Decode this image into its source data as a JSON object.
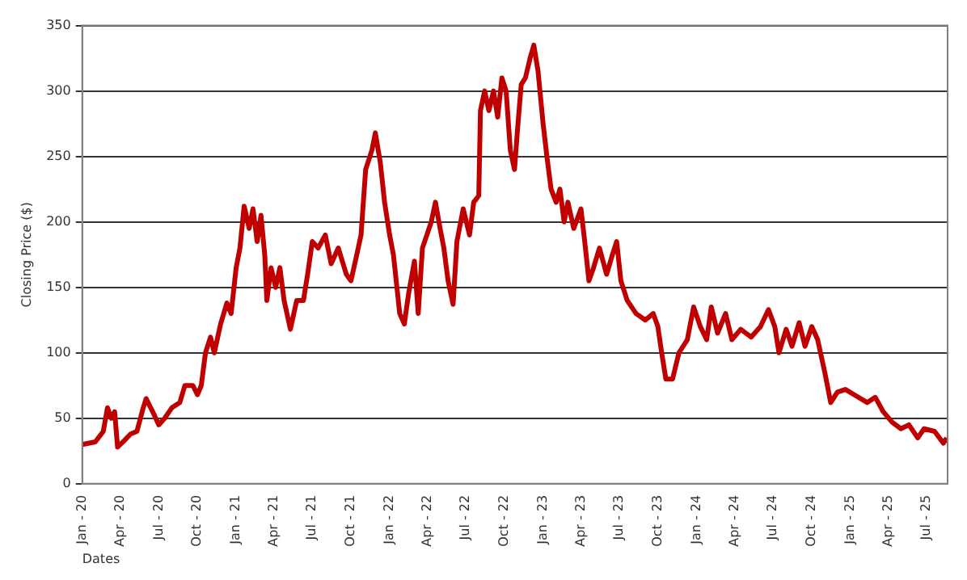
{
  "chart_data": {
    "type": "line",
    "xlabel": "Dates",
    "ylabel": "Closing Price ($)",
    "ylim": [
      0,
      350
    ],
    "yticks": [
      0,
      50,
      100,
      150,
      200,
      250,
      300,
      350
    ],
    "xlim": [
      "2020-01-01",
      "2025-08-20"
    ],
    "xticks": [
      {
        "value": "2020-01-01",
        "label": "Jan - 20"
      },
      {
        "value": "2020-04-01",
        "label": "Apr - 20"
      },
      {
        "value": "2020-07-01",
        "label": "Jul - 20"
      },
      {
        "value": "2020-10-01",
        "label": "Oct - 20"
      },
      {
        "value": "2021-01-01",
        "label": "Jan - 21"
      },
      {
        "value": "2021-04-01",
        "label": "Apr - 21"
      },
      {
        "value": "2021-07-01",
        "label": "Jul - 21"
      },
      {
        "value": "2021-10-01",
        "label": "Oct - 21"
      },
      {
        "value": "2022-01-01",
        "label": "Jan - 22"
      },
      {
        "value": "2022-04-01",
        "label": "Apr - 22"
      },
      {
        "value": "2022-07-01",
        "label": "Jul - 22"
      },
      {
        "value": "2022-10-01",
        "label": "Oct - 22"
      },
      {
        "value": "2023-01-01",
        "label": "Jan - 23"
      },
      {
        "value": "2023-04-01",
        "label": "Apr - 23"
      },
      {
        "value": "2023-07-01",
        "label": "Jul - 23"
      },
      {
        "value": "2023-10-01",
        "label": "Oct - 23"
      },
      {
        "value": "2024-01-01",
        "label": "Jan - 24"
      },
      {
        "value": "2024-04-01",
        "label": "Apr - 24"
      },
      {
        "value": "2024-07-01",
        "label": "Jul - 24"
      },
      {
        "value": "2024-10-01",
        "label": "Oct - 24"
      },
      {
        "value": "2025-01-01",
        "label": "Jan - 25"
      },
      {
        "value": "2025-04-01",
        "label": "Apr - 25"
      },
      {
        "value": "2025-07-01",
        "label": "Jul - 25"
      }
    ],
    "x": [
      "2020-01-01",
      "2020-02-01",
      "2020-02-20",
      "2020-03-01",
      "2020-03-10",
      "2020-03-18",
      "2020-03-25",
      "2020-04-10",
      "2020-04-25",
      "2020-05-10",
      "2020-05-25",
      "2020-06-01",
      "2020-06-15",
      "2020-07-01",
      "2020-07-15",
      "2020-08-01",
      "2020-08-20",
      "2020-09-01",
      "2020-09-20",
      "2020-10-01",
      "2020-10-10",
      "2020-10-20",
      "2020-11-01",
      "2020-11-10",
      "2020-11-25",
      "2020-12-10",
      "2020-12-20",
      "2021-01-01",
      "2021-01-10",
      "2021-01-20",
      "2021-02-01",
      "2021-02-10",
      "2021-02-20",
      "2021-03-01",
      "2021-03-10",
      "2021-03-15",
      "2021-03-25",
      "2021-04-05",
      "2021-04-15",
      "2021-04-25",
      "2021-05-10",
      "2021-05-25",
      "2021-06-10",
      "2021-06-20",
      "2021-07-01",
      "2021-07-15",
      "2021-08-01",
      "2021-08-15",
      "2021-09-01",
      "2021-09-20",
      "2021-10-01",
      "2021-10-15",
      "2021-10-25",
      "2021-11-05",
      "2021-11-20",
      "2021-11-28",
      "2021-12-10",
      "2021-12-20",
      "2022-01-01",
      "2022-01-10",
      "2022-01-25",
      "2022-02-05",
      "2022-02-15",
      "2022-03-01",
      "2022-03-10",
      "2022-03-20",
      "2022-04-10",
      "2022-04-20",
      "2022-05-01",
      "2022-05-10",
      "2022-05-20",
      "2022-06-01",
      "2022-06-10",
      "2022-06-25",
      "2022-07-10",
      "2022-07-20",
      "2022-08-01",
      "2022-08-05",
      "2022-08-15",
      "2022-08-25",
      "2022-09-05",
      "2022-09-15",
      "2022-09-25",
      "2022-10-05",
      "2022-10-15",
      "2022-10-25",
      "2022-11-01",
      "2022-11-10",
      "2022-11-20",
      "2022-12-01",
      "2022-12-10",
      "2022-12-20",
      "2023-01-01",
      "2023-01-10",
      "2023-01-20",
      "2023-02-01",
      "2023-02-10",
      "2023-02-20",
      "2023-03-01",
      "2023-03-15",
      "2023-04-01",
      "2023-04-10",
      "2023-04-20",
      "2023-05-01",
      "2023-05-15",
      "2023-06-01",
      "2023-06-15",
      "2023-06-25",
      "2023-07-05",
      "2023-07-20",
      "2023-08-10",
      "2023-09-01",
      "2023-09-20",
      "2023-10-01",
      "2023-10-10",
      "2023-10-20",
      "2023-11-05",
      "2023-11-20",
      "2023-12-10",
      "2023-12-25",
      "2024-01-10",
      "2024-01-25",
      "2024-02-05",
      "2024-02-20",
      "2024-03-10",
      "2024-03-25",
      "2024-04-15",
      "2024-05-10",
      "2024-06-01",
      "2024-06-20",
      "2024-07-05",
      "2024-07-15",
      "2024-08-01",
      "2024-08-15",
      "2024-09-01",
      "2024-09-15",
      "2024-10-01",
      "2024-10-15",
      "2024-11-01",
      "2024-11-15",
      "2024-12-01",
      "2024-12-20",
      "2025-01-15",
      "2025-02-10",
      "2025-03-01",
      "2025-03-20",
      "2025-04-10",
      "2025-05-01",
      "2025-05-20",
      "2025-06-10",
      "2025-06-25",
      "2025-07-20",
      "2025-08-10",
      "2025-08-18"
    ],
    "series": [
      {
        "color": "#c00000",
        "values": [
          30,
          32,
          40,
          58,
          50,
          55,
          28,
          33,
          38,
          40,
          58,
          65,
          56,
          45,
          50,
          58,
          62,
          75,
          75,
          68,
          75,
          100,
          112,
          100,
          122,
          138,
          130,
          165,
          180,
          212,
          195,
          210,
          185,
          205,
          175,
          140,
          165,
          150,
          165,
          140,
          118,
          140,
          140,
          160,
          185,
          180,
          190,
          168,
          180,
          160,
          155,
          175,
          190,
          240,
          255,
          268,
          245,
          215,
          190,
          175,
          130,
          122,
          145,
          170,
          130,
          180,
          200,
          215,
          195,
          180,
          155,
          137,
          185,
          210,
          190,
          215,
          220,
          285,
          300,
          285,
          300,
          280,
          310,
          300,
          255,
          240,
          270,
          305,
          310,
          325,
          335,
          315,
          275,
          250,
          225,
          215,
          225,
          200,
          215,
          195,
          210,
          185,
          155,
          165,
          180,
          160,
          175,
          185,
          155,
          140,
          130,
          125,
          130,
          120,
          100,
          80,
          80,
          100,
          110,
          135,
          120,
          110,
          135,
          115,
          130,
          110,
          118,
          112,
          120,
          133,
          120,
          100,
          118,
          105,
          123,
          105,
          120,
          110,
          85,
          62,
          70,
          72,
          67,
          62,
          66,
          55,
          47,
          42,
          45,
          35,
          42,
          40,
          31,
          35
        ]
      }
    ],
    "grid": "y",
    "legend": false,
    "marker": "none",
    "line_style": "solid"
  }
}
